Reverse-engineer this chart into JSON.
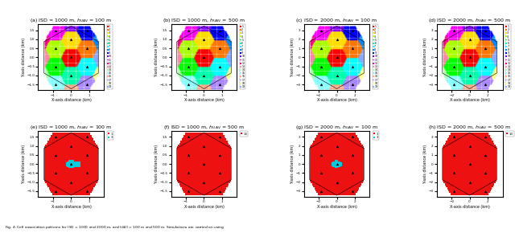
{
  "subtitles": [
    "(a) ISD = 1000 m, $h_{\\mathrm{UAV}}$ = 100 m",
    "(b) ISD = 1000 m, $h_{\\mathrm{UAV}}$ = 500 m",
    "(c) ISD = 2000 m, $h_{\\mathrm{UAV}}$ = 100 m",
    "(d) ISD = 2000 m, $h_{\\mathrm{UAV}}$ = 500 m",
    "(e) ISD = 1000 m, $h_{\\mathrm{UAV}}$ = 100 m",
    "(f) ISD = 1000 m, $h_{\\mathrm{UAV}}$ = 500 m",
    "(g) ISD = 2000 m, $h_{\\mathrm{UAV}}$ = 100 m",
    "(h) ISD = 2000 m, $h_{\\mathrm{UAV}}$ = 500 m"
  ],
  "colors_scatter": [
    "#FF0000",
    "#FF7700",
    "#FFDD00",
    "#AAFF00",
    "#00FF00",
    "#00FFAA",
    "#00FFFF",
    "#0088FF",
    "#0000FF",
    "#8800FF",
    "#FF00FF",
    "#FF0088",
    "#FF88AA",
    "#AAFFAA",
    "#88FFFF",
    "#FFAA88",
    "#AA88FF",
    "#FFFF88",
    "#88AAFF"
  ],
  "xlabel": "X-axis distance (km)",
  "ylabel": "Y-axis distance (km)",
  "caption": "Fig. 4: Cell association patterns for ISD = 1000 and 2000 m, and $h_{\\mathrm{UAV}}$ = 100 m and 500 m. Simulations are carried on using"
}
